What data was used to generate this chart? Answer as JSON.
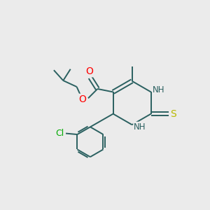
{
  "background_color": "#ebebeb",
  "bond_color": "#2a6060",
  "atom_colors": {
    "O": "#ff0000",
    "N": "#2a6060",
    "S": "#b8b800",
    "Cl": "#00aa00",
    "C": "#2a6060",
    "H": "#2a6060"
  },
  "figsize": [
    3.0,
    3.0
  ],
  "dpi": 100
}
